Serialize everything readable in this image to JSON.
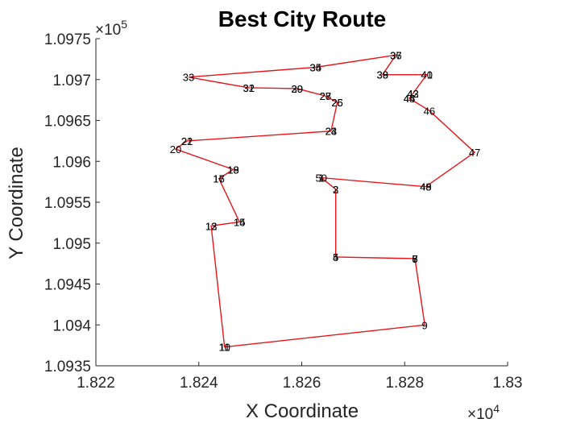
{
  "chart_data": {
    "type": "line",
    "title": "Best City Route",
    "xlabel": "X Coordinate",
    "ylabel": "Y Coordinate",
    "xlim": [
      18220,
      18300
    ],
    "ylim": [
      109350,
      109750
    ],
    "xticks": [
      "1.822",
      "1.824",
      "1.826",
      "1.828",
      "1.83"
    ],
    "yticks": [
      "1.0935",
      "1.094",
      "1.0945",
      "1.095",
      "1.0955",
      "1.096",
      "1.0965",
      "1.097",
      "1.0975"
    ],
    "x_exponent": "×10^4",
    "y_exponent": "×10^5",
    "x_exponent_base": "×10",
    "x_exponent_power": "4",
    "y_exponent_base": "×10",
    "y_exponent_power": "5",
    "line_color": "#e8161b",
    "series": [
      {
        "route": [
          {
            "label": "10",
            "x": 18245.0,
            "y": 109373
          },
          {
            "label": "9",
            "x": 18283.9,
            "y": 109400
          },
          {
            "label": "7",
            "x": 18282.0,
            "y": 109481
          },
          {
            "label": "4",
            "x": 18266.6,
            "y": 109483
          },
          {
            "label": "2",
            "x": 18266.6,
            "y": 109566
          },
          {
            "label": "50",
            "x": 18263.8,
            "y": 109580
          },
          {
            "label": "49",
            "x": 18284.1,
            "y": 109569
          },
          {
            "label": "47",
            "x": 18293.6,
            "y": 109611
          },
          {
            "label": "46",
            "x": 18284.8,
            "y": 109662
          },
          {
            "label": "45",
            "x": 18280.9,
            "y": 109677
          },
          {
            "label": "43",
            "x": 18281.6,
            "y": 109683
          },
          {
            "label": "40",
            "x": 18284.3,
            "y": 109706
          },
          {
            "label": "39",
            "x": 18275.7,
            "y": 109706
          },
          {
            "label": "37",
            "x": 18278.3,
            "y": 109730
          },
          {
            "label": "35",
            "x": 18262.7,
            "y": 109715
          },
          {
            "label": "33",
            "x": 18238.0,
            "y": 109703
          },
          {
            "label": "31",
            "x": 18249.7,
            "y": 109690
          },
          {
            "label": "29",
            "x": 18259.1,
            "y": 109689
          },
          {
            "label": "28",
            "x": 18264.6,
            "y": 109680
          },
          {
            "label": "26",
            "x": 18266.9,
            "y": 109672
          },
          {
            "label": "24",
            "x": 18265.7,
            "y": 109637
          },
          {
            "label": "22",
            "x": 18237.7,
            "y": 109625
          },
          {
            "label": "20",
            "x": 18235.5,
            "y": 109615
          },
          {
            "label": "18",
            "x": 18246.7,
            "y": 109590
          },
          {
            "label": "16",
            "x": 18243.9,
            "y": 109579
          },
          {
            "label": "15",
            "x": 18247.9,
            "y": 109526
          },
          {
            "label": "13",
            "x": 18242.4,
            "y": 109521
          },
          {
            "label": "10",
            "x": 18245.0,
            "y": 109373
          }
        ]
      }
    ],
    "point_labels": [
      {
        "label": "11",
        "x": 18245.0,
        "y": 109373
      },
      {
        "label": "10",
        "x": 18245.0,
        "y": 109373
      },
      {
        "label": "9",
        "x": 18283.9,
        "y": 109400
      },
      {
        "label": "8",
        "x": 18282.0,
        "y": 109481
      },
      {
        "label": "7",
        "x": 18282.0,
        "y": 109481
      },
      {
        "label": "5",
        "x": 18266.6,
        "y": 109483
      },
      {
        "label": "4",
        "x": 18266.6,
        "y": 109483
      },
      {
        "label": "3",
        "x": 18266.6,
        "y": 109566
      },
      {
        "label": "2",
        "x": 18266.6,
        "y": 109566
      },
      {
        "label": "1",
        "x": 18263.8,
        "y": 109580
      },
      {
        "label": "50",
        "x": 18263.8,
        "y": 109580
      },
      {
        "label": "49",
        "x": 18284.1,
        "y": 109569
      },
      {
        "label": "48",
        "x": 18284.1,
        "y": 109569
      },
      {
        "label": "47",
        "x": 18293.6,
        "y": 109611
      },
      {
        "label": "46",
        "x": 18284.8,
        "y": 109662
      },
      {
        "label": "45",
        "x": 18280.9,
        "y": 109677
      },
      {
        "label": "44",
        "x": 18280.9,
        "y": 109677
      },
      {
        "label": "43",
        "x": 18281.6,
        "y": 109683
      },
      {
        "label": "42",
        "x": 18281.6,
        "y": 109683
      },
      {
        "label": "41",
        "x": 18284.3,
        "y": 109706
      },
      {
        "label": "40",
        "x": 18284.3,
        "y": 109706
      },
      {
        "label": "39",
        "x": 18275.7,
        "y": 109706
      },
      {
        "label": "38",
        "x": 18275.7,
        "y": 109706
      },
      {
        "label": "37",
        "x": 18278.3,
        "y": 109730
      },
      {
        "label": "36",
        "x": 18278.3,
        "y": 109730
      },
      {
        "label": "35",
        "x": 18262.7,
        "y": 109715
      },
      {
        "label": "34",
        "x": 18262.7,
        "y": 109715
      },
      {
        "label": "33",
        "x": 18238.0,
        "y": 109703
      },
      {
        "label": "32",
        "x": 18249.7,
        "y": 109690
      },
      {
        "label": "31",
        "x": 18249.7,
        "y": 109690
      },
      {
        "label": "30",
        "x": 18259.1,
        "y": 109689
      },
      {
        "label": "29",
        "x": 18259.1,
        "y": 109689
      },
      {
        "label": "28",
        "x": 18264.6,
        "y": 109680
      },
      {
        "label": "27",
        "x": 18264.6,
        "y": 109680
      },
      {
        "label": "26",
        "x": 18266.9,
        "y": 109672
      },
      {
        "label": "25",
        "x": 18266.9,
        "y": 109672
      },
      {
        "label": "24",
        "x": 18265.7,
        "y": 109637
      },
      {
        "label": "23",
        "x": 18265.7,
        "y": 109637
      },
      {
        "label": "22",
        "x": 18237.7,
        "y": 109625
      },
      {
        "label": "21",
        "x": 18237.7,
        "y": 109625
      },
      {
        "label": "20",
        "x": 18235.5,
        "y": 109615
      },
      {
        "label": "19",
        "x": 18246.7,
        "y": 109590
      },
      {
        "label": "18",
        "x": 18246.7,
        "y": 109590
      },
      {
        "label": "17",
        "x": 18243.9,
        "y": 109579
      },
      {
        "label": "16",
        "x": 18243.9,
        "y": 109579
      },
      {
        "label": "15",
        "x": 18247.9,
        "y": 109526
      },
      {
        "label": "14",
        "x": 18247.9,
        "y": 109526
      },
      {
        "label": "13",
        "x": 18242.4,
        "y": 109521
      },
      {
        "label": "12",
        "x": 18242.4,
        "y": 109521
      },
      {
        "label": "6",
        "x": 18282.0,
        "y": 109481
      }
    ]
  }
}
